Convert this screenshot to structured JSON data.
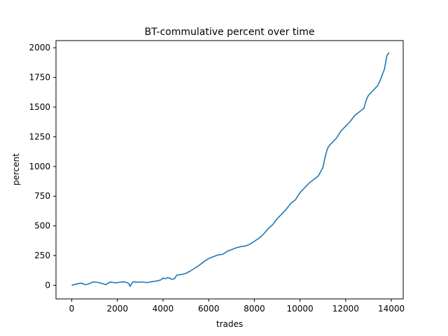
{
  "chart_data": {
    "type": "line",
    "title": "BT-commulative percent over time",
    "xlabel": "trades",
    "ylabel": "percent",
    "xlim": [
      -690,
      14520
    ],
    "ylim": [
      -115,
      2060
    ],
    "xticks": [
      0,
      2000,
      4000,
      6000,
      8000,
      10000,
      12000,
      14000
    ],
    "yticks": [
      0,
      250,
      500,
      750,
      1000,
      1250,
      1500,
      1750,
      2000
    ],
    "grid": false,
    "legend": "none",
    "series": [
      {
        "color": "#1f77b4",
        "x": [
          0,
          200,
          400,
          500,
          600,
          700,
          900,
          1000,
          1200,
          1400,
          1500,
          1600,
          1700,
          1900,
          2100,
          2300,
          2500,
          2550,
          2600,
          2650,
          2700,
          2900,
          3100,
          3300,
          3500,
          3700,
          3900,
          4000,
          4100,
          4200,
          4400,
          4500,
          4600,
          4800,
          5000,
          5200,
          5400,
          5600,
          5800,
          6000,
          6200,
          6400,
          6600,
          6700,
          6800,
          7000,
          7200,
          7400,
          7600,
          7800,
          8000,
          8200,
          8400,
          8600,
          8800,
          9000,
          9200,
          9400,
          9600,
          9800,
          10000,
          10200,
          10400,
          10600,
          10800,
          11000,
          11100,
          11200,
          11300,
          11400,
          11600,
          11800,
          12000,
          12200,
          12400,
          12600,
          12800,
          12900,
          13000,
          13200,
          13400,
          13500,
          13600,
          13700,
          13800,
          13900
        ],
        "y": [
          0,
          10,
          18,
          12,
          5,
          8,
          25,
          28,
          22,
          10,
          5,
          18,
          28,
          20,
          25,
          30,
          15,
          -10,
          5,
          20,
          30,
          25,
          28,
          22,
          30,
          35,
          45,
          60,
          55,
          65,
          50,
          55,
          85,
          90,
          100,
          120,
          145,
          170,
          200,
          225,
          240,
          255,
          260,
          270,
          285,
          300,
          315,
          325,
          330,
          345,
          370,
          395,
          430,
          475,
          510,
          560,
          600,
          640,
          690,
          720,
          780,
          820,
          860,
          890,
          920,
          990,
          1080,
          1150,
          1180,
          1200,
          1240,
          1300,
          1340,
          1380,
          1430,
          1460,
          1490,
          1560,
          1600,
          1640,
          1680,
          1720,
          1770,
          1820,
          1930,
          1960
        ]
      }
    ]
  }
}
